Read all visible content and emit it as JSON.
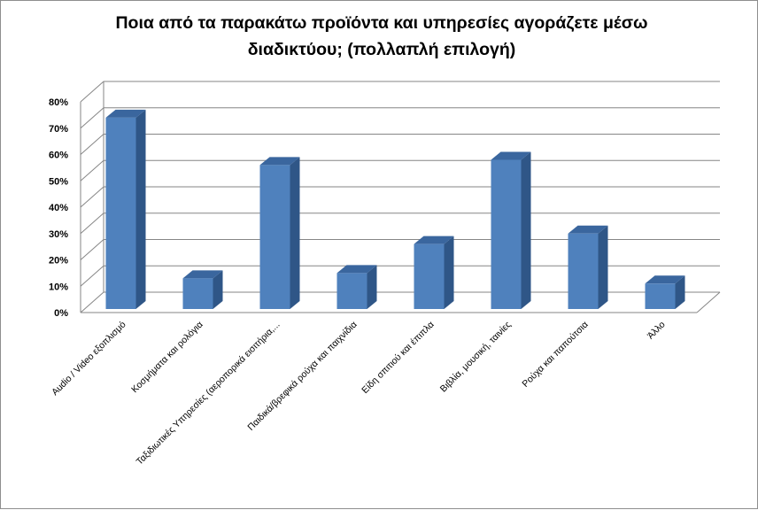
{
  "chart_data": {
    "type": "bar",
    "title_line1": "Ποια από τα παρακάτω προϊόντα και υπηρεσίες αγοράζετε μέσω",
    "title_line2": "διαδικτύου; (πολλαπλή επιλογή)",
    "categories": [
      "Audio / Video εξοπλισμό",
      "Κοσμήματα και ρολόγια",
      "Ταξιδιωτικές Υπηρεσίες (αεροπορικά εισιτήρια,...",
      "Παιδικά/βρεφικά ρούχα και παιχνίδια",
      "Είδη σπιτιού και έπιπλα",
      "Βιβλία, μουσική, ταινίες",
      "Ρούχα και παπούτσια",
      "Άλλο"
    ],
    "values": [
      74,
      13,
      56,
      15,
      26,
      58,
      30,
      11
    ],
    "ylim": [
      0,
      80
    ],
    "yticks": [
      "0%",
      "10%",
      "20%",
      "30%",
      "40%",
      "50%",
      "60%",
      "70%",
      "80%"
    ],
    "grid": true,
    "legend": "none",
    "colors": {
      "bar_front": "#4f81bd",
      "bar_side": "#2f5687",
      "bar_top": "#3a669e",
      "grid": "#868686"
    }
  }
}
